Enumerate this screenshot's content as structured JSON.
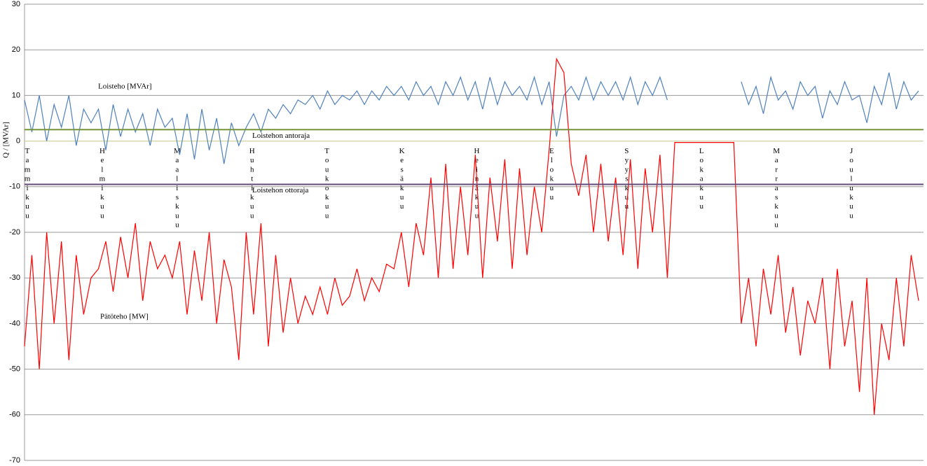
{
  "chart_data": {
    "type": "line",
    "ylabel": "Q / [MVAr]",
    "xlim": [
      0,
      365
    ],
    "ylim": [
      -70,
      30
    ],
    "yticks": [
      -70,
      -60,
      -50,
      -40,
      -30,
      -20,
      -10,
      0,
      10,
      20,
      30
    ],
    "grid": true,
    "months": [
      "Tammikuu",
      "Helmikuu",
      "Maaliskuu",
      "Huhtikuu",
      "Toukokuu",
      "Kesäkuu",
      "Heinäkuu",
      "Elokuu",
      "Syyskuu",
      "Lokakuu",
      "Marraskuu",
      "Joulukuu"
    ],
    "reference_lines": [
      {
        "name": "Loistehon antoraja",
        "value": 2.5,
        "color": "#77933c"
      },
      {
        "name": "Loistehon ottoraja",
        "value": -9.5,
        "color": "#604a7b"
      }
    ],
    "x": [
      0,
      3,
      6,
      9,
      12,
      15,
      18,
      21,
      24,
      27,
      30,
      33,
      36,
      39,
      42,
      45,
      48,
      51,
      54,
      57,
      60,
      63,
      66,
      69,
      72,
      75,
      78,
      81,
      84,
      87,
      90,
      93,
      96,
      99,
      102,
      105,
      108,
      111,
      114,
      117,
      120,
      123,
      126,
      129,
      132,
      135,
      138,
      141,
      144,
      147,
      150,
      153,
      156,
      159,
      162,
      165,
      168,
      171,
      174,
      177,
      180,
      183,
      186,
      189,
      192,
      195,
      198,
      201,
      204,
      207,
      210,
      213,
      216,
      219,
      222,
      225,
      228,
      231,
      234,
      237,
      240,
      243,
      246,
      249,
      252,
      255,
      258,
      261,
      264,
      267,
      270,
      273,
      276,
      279,
      282,
      285,
      288,
      291,
      294,
      297,
      300,
      303,
      306,
      309,
      312,
      315,
      318,
      321,
      324,
      327,
      330,
      333,
      336,
      339,
      342,
      345,
      348,
      351,
      354,
      357,
      360,
      363
    ],
    "series": [
      {
        "name": "Loisteho [MVAr]",
        "color": "#4f81bd",
        "values": [
          9,
          2,
          10,
          0,
          8,
          3,
          10,
          -1,
          7,
          4,
          7,
          -2,
          8,
          1,
          7,
          2,
          6,
          -1,
          7,
          3,
          5,
          -3,
          6,
          -4,
          7,
          -2,
          5,
          -5,
          4,
          -1,
          3,
          6,
          2,
          7,
          5,
          8,
          6,
          9,
          8,
          10,
          7,
          11,
          8,
          10,
          9,
          11,
          8,
          11,
          9,
          12,
          10,
          12,
          9,
          13,
          10,
          12,
          8,
          13,
          10,
          14,
          9,
          13,
          7,
          14,
          8,
          13,
          10,
          12,
          9,
          14,
          8,
          13,
          1,
          10,
          12,
          9,
          14,
          9,
          13,
          10,
          13,
          9,
          14,
          8,
          13,
          10,
          14,
          9,
          null,
          null,
          null,
          null,
          null,
          null,
          null,
          null,
          null,
          13,
          8,
          12,
          6,
          14,
          9,
          11,
          7,
          13,
          10,
          12,
          5,
          11,
          8,
          13,
          9,
          10,
          4,
          12,
          8,
          15,
          7,
          13,
          9,
          11
        ]
      },
      {
        "name": "Pätöteho [MW]",
        "color": "#ff0000",
        "values": [
          -45,
          -25,
          -50,
          -20,
          -40,
          -22,
          -48,
          -25,
          -38,
          -30,
          -28,
          -22,
          -33,
          -21,
          -30,
          -18,
          -35,
          -22,
          -28,
          -25,
          -30,
          -22,
          -38,
          -24,
          -35,
          -20,
          -40,
          -26,
          -32,
          -48,
          -20,
          -38,
          -18,
          -45,
          -25,
          -42,
          -30,
          -40,
          -34,
          -38,
          -32,
          -38,
          -30,
          -36,
          -34,
          -28,
          -35,
          -30,
          -33,
          -27,
          -28,
          -20,
          -32,
          -18,
          -25,
          -8,
          -30,
          -5,
          -28,
          -10,
          -25,
          -3,
          -30,
          -8,
          -22,
          -4,
          -28,
          -6,
          -25,
          -10,
          -20,
          -2,
          18,
          15,
          -5,
          -12,
          -3,
          -20,
          -5,
          -22,
          -8,
          -25,
          -4,
          -28,
          -6,
          -20,
          -3,
          -30,
          -0.3,
          -0.3,
          -0.3,
          -0.3,
          -0.3,
          -0.3,
          -0.3,
          -0.3,
          -0.3,
          -40,
          -30,
          -45,
          -28,
          -38,
          -25,
          -42,
          -32,
          -47,
          -35,
          -40,
          -30,
          -50,
          -28,
          -45,
          -35,
          -55,
          -30,
          -60,
          -40,
          -48,
          -30,
          -45,
          -25,
          -35
        ]
      }
    ]
  }
}
